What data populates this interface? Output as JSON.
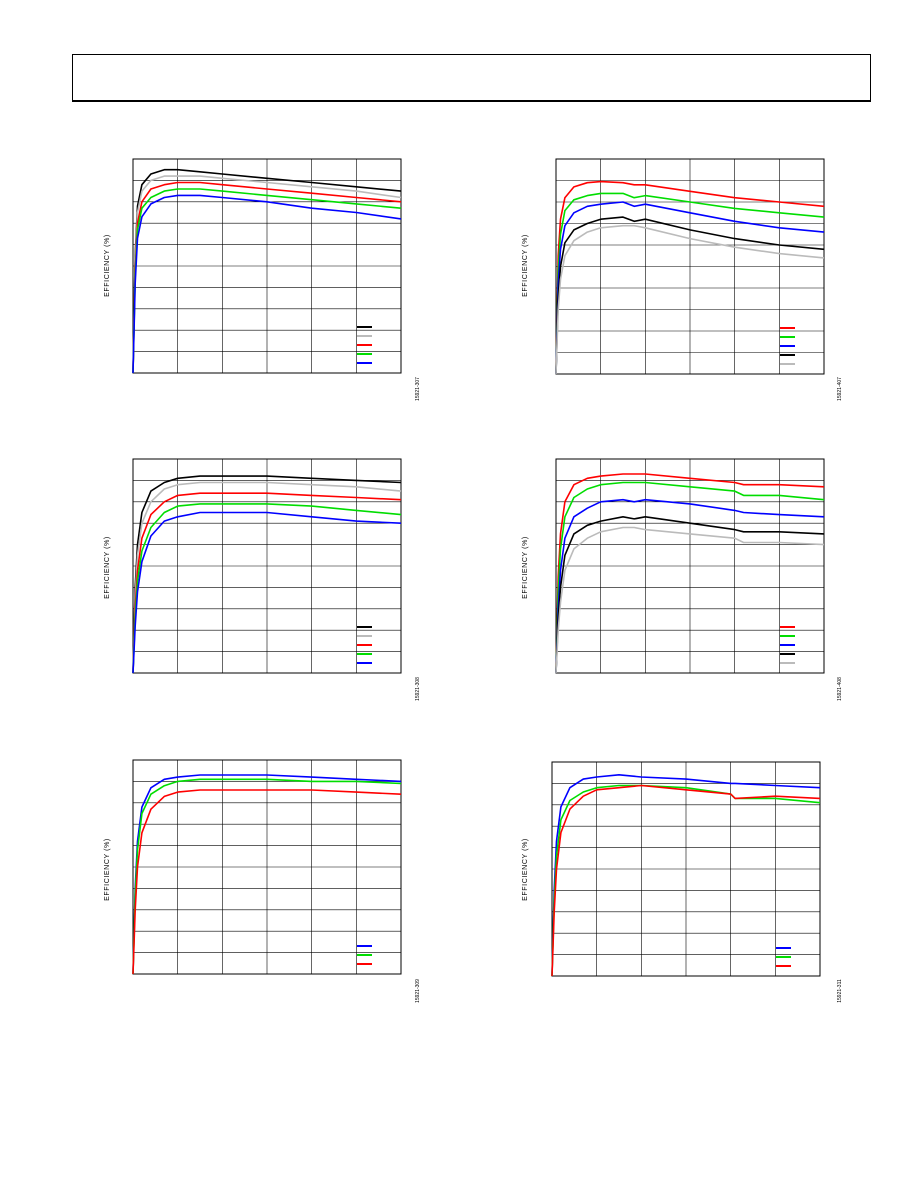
{
  "page": {
    "header_text": ""
  },
  "colors": {
    "black": "#000000",
    "gray": "#bbbbbb",
    "red": "#ff0000",
    "green": "#00dd00",
    "blue": "#0000ff"
  },
  "charts": [
    {
      "id": "p1",
      "ylabel": "EFFICIENCY (%)",
      "fig_id": "15921-307",
      "chart_data": {
        "type": "line",
        "grid": true,
        "legend_placement": "bottom-right",
        "x": [
          0,
          0.05,
          0.1,
          0.2,
          0.4,
          0.7,
          1.0,
          1.5,
          2.0,
          3.0,
          4.0,
          5.0,
          6.0
        ],
        "xlim": [
          0,
          6
        ],
        "ylim": [
          0,
          100
        ],
        "series": [
          {
            "color_key": "black",
            "values": [
              0,
              55,
              78,
              88,
              93,
              95,
              95,
              94,
              93,
              91,
              89,
              87,
              85
            ]
          },
          {
            "color_key": "gray",
            "values": [
              0,
              52,
              75,
              85,
              90,
              92,
              92,
              92,
              91,
              89,
              87,
              85,
              82
            ]
          },
          {
            "color_key": "red",
            "values": [
              0,
              48,
              70,
              80,
              86,
              88,
              89,
              89,
              88,
              86,
              84,
              82,
              80
            ]
          },
          {
            "color_key": "green",
            "values": [
              0,
              45,
              67,
              77,
              82,
              85,
              86,
              86,
              85,
              83,
              81,
              79,
              77
            ]
          },
          {
            "color_key": "blue",
            "values": [
              0,
              42,
              63,
              73,
              79,
              82,
              83,
              83,
              82,
              80,
              77,
              75,
              72
            ]
          }
        ],
        "legend": [
          "black",
          "gray",
          "red",
          "green",
          "blue"
        ]
      }
    },
    {
      "id": "p2",
      "ylabel": "EFFICIENCY (%)",
      "fig_id": "15921-407",
      "chart_data": {
        "type": "line",
        "grid": true,
        "legend_placement": "bottom-right",
        "x": [
          0,
          0.05,
          0.1,
          0.2,
          0.4,
          0.7,
          1.0,
          1.5,
          1.75,
          2.0,
          3.0,
          4.0,
          5.0,
          6.0
        ],
        "xlim": [
          0,
          6
        ],
        "ylim": [
          0,
          100
        ],
        "series": [
          {
            "color_key": "red",
            "values": [
              0,
              55,
              72,
              82,
              87,
              89,
              89.5,
              89,
              88,
              88,
              85,
              82,
              80,
              78
            ]
          },
          {
            "color_key": "green",
            "values": [
              0,
              48,
              65,
              76,
              81,
              83,
              84,
              84,
              82,
              83,
              80,
              77,
              75,
              73
            ]
          },
          {
            "color_key": "blue",
            "values": [
              0,
              42,
              58,
              69,
              75,
              78,
              79,
              80,
              78,
              79,
              75,
              71,
              68,
              66
            ]
          },
          {
            "color_key": "black",
            "values": [
              0,
              35,
              50,
              61,
              67,
              70,
              72,
              73,
              71,
              72,
              67,
              63,
              60,
              58
            ]
          },
          {
            "color_key": "gray",
            "values": [
              0,
              30,
              44,
              55,
              62,
              66,
              68,
              69,
              69,
              68,
              63,
              59,
              56,
              54
            ]
          }
        ],
        "legend": [
          "red",
          "green",
          "blue",
          "black",
          "gray"
        ]
      }
    },
    {
      "id": "p3",
      "ylabel": "EFFICIENCY (%)",
      "fig_id": "15921-308",
      "chart_data": {
        "type": "line",
        "grid": true,
        "legend_placement": "bottom-right",
        "x": [
          0,
          0.05,
          0.1,
          0.2,
          0.4,
          0.7,
          1.0,
          1.5,
          2.0,
          3.0,
          4.0,
          5.0,
          6.0
        ],
        "xlim": [
          0,
          6
        ],
        "ylim": [
          0,
          100
        ],
        "series": [
          {
            "color_key": "black",
            "values": [
              0,
              40,
              60,
              75,
              85,
              89,
              91,
              92,
              92,
              92,
              91,
              90,
              89
            ]
          },
          {
            "color_key": "gray",
            "values": [
              0,
              35,
              55,
              70,
              80,
              86,
              88,
              89,
              89,
              89,
              88,
              87,
              85
            ]
          },
          {
            "color_key": "red",
            "values": [
              0,
              30,
              48,
              63,
              74,
              80,
              83,
              84,
              84,
              84,
              83,
              82,
              81
            ]
          },
          {
            "color_key": "green",
            "values": [
              0,
              26,
              43,
              57,
              68,
              75,
              78,
              79,
              79,
              79,
              78,
              76,
              74
            ]
          },
          {
            "color_key": "blue",
            "values": [
              0,
              22,
              38,
              52,
              64,
              71,
              73,
              75,
              75,
              75,
              73,
              71,
              70
            ]
          }
        ],
        "legend": [
          "black",
          "gray",
          "red",
          "green",
          "blue"
        ]
      }
    },
    {
      "id": "p4",
      "ylabel": "EFFICIENCY (%)",
      "fig_id": "15921-408",
      "chart_data": {
        "type": "line",
        "grid": true,
        "legend_placement": "bottom-right",
        "x": [
          0,
          0.05,
          0.1,
          0.2,
          0.4,
          0.7,
          1.0,
          1.5,
          1.75,
          2.0,
          3.0,
          4.0,
          4.2,
          5.0,
          6.0
        ],
        "xlim": [
          0,
          6
        ],
        "ylim": [
          0,
          100
        ],
        "series": [
          {
            "color_key": "red",
            "values": [
              0,
              45,
              65,
              80,
              88,
              91,
              92,
              93,
              93,
              93,
              91,
              89,
              88,
              88,
              87
            ]
          },
          {
            "color_key": "green",
            "values": [
              0,
              38,
              58,
              73,
              82,
              86,
              88,
              89,
              89,
              89,
              87,
              85,
              83,
              83,
              81
            ]
          },
          {
            "color_key": "blue",
            "values": [
              0,
              30,
              48,
              63,
              73,
              77,
              80,
              81,
              80,
              81,
              79,
              76,
              75,
              74,
              73
            ]
          },
          {
            "color_key": "black",
            "values": [
              0,
              25,
              40,
              55,
              65,
              69,
              71,
              73,
              72,
              73,
              70,
              67,
              66,
              66,
              65
            ]
          },
          {
            "color_key": "gray",
            "values": [
              0,
              20,
              33,
              48,
              58,
              63,
              66,
              68,
              68,
              67,
              65,
              63,
              61,
              61,
              60
            ]
          }
        ],
        "legend": [
          "red",
          "green",
          "blue",
          "black",
          "gray"
        ]
      }
    },
    {
      "id": "p5",
      "ylabel": "EFFICIENCY (%)",
      "fig_id": "15921-309",
      "chart_data": {
        "type": "line",
        "grid": true,
        "legend_placement": "bottom-right",
        "x": [
          0,
          0.05,
          0.1,
          0.2,
          0.4,
          0.7,
          1.0,
          1.5,
          2.0,
          3.0,
          4.0,
          5.0,
          6.0
        ],
        "xlim": [
          0,
          6
        ],
        "ylim": [
          0,
          100
        ],
        "series": [
          {
            "color_key": "blue",
            "values": [
              0,
              40,
              62,
              78,
              87,
              91,
              92,
              93,
              93,
              93,
              92,
              91,
              90
            ]
          },
          {
            "color_key": "green",
            "values": [
              0,
              37,
              58,
              75,
              84,
              88,
              90,
              91,
              91,
              91,
              90,
              90,
              89
            ]
          },
          {
            "color_key": "red",
            "values": [
              0,
              30,
              50,
              66,
              77,
              83,
              85,
              86,
              86,
              86,
              86,
              85,
              84
            ]
          }
        ],
        "legend": [
          "blue",
          "green",
          "red"
        ]
      }
    },
    {
      "id": "p6",
      "ylabel": "EFFICIENCY (%)",
      "fig_id": "15921-311",
      "chart_data": {
        "type": "line",
        "grid": true,
        "legend_placement": "bottom-right",
        "x": [
          0,
          0.05,
          0.1,
          0.2,
          0.4,
          0.7,
          1.0,
          1.5,
          2.0,
          3.0,
          4.0,
          4.1,
          5.0,
          6.0
        ],
        "xlim": [
          0,
          6
        ],
        "ylim": [
          0,
          100
        ],
        "series": [
          {
            "color_key": "blue",
            "values": [
              0,
              40,
              63,
              79,
              88,
              92,
              93,
              94,
              93,
              92,
              90,
              90,
              89,
              88
            ]
          },
          {
            "color_key": "green",
            "values": [
              0,
              35,
              56,
              73,
              82,
              86,
              88,
              89,
              89,
              88,
              85,
              83,
              83,
              81
            ]
          },
          {
            "color_key": "red",
            "values": [
              0,
              30,
              50,
              67,
              78,
              84,
              87,
              88,
              89,
              87,
              85,
              83,
              84,
              83
            ]
          }
        ],
        "legend": [
          "blue",
          "green",
          "red"
        ]
      }
    }
  ]
}
